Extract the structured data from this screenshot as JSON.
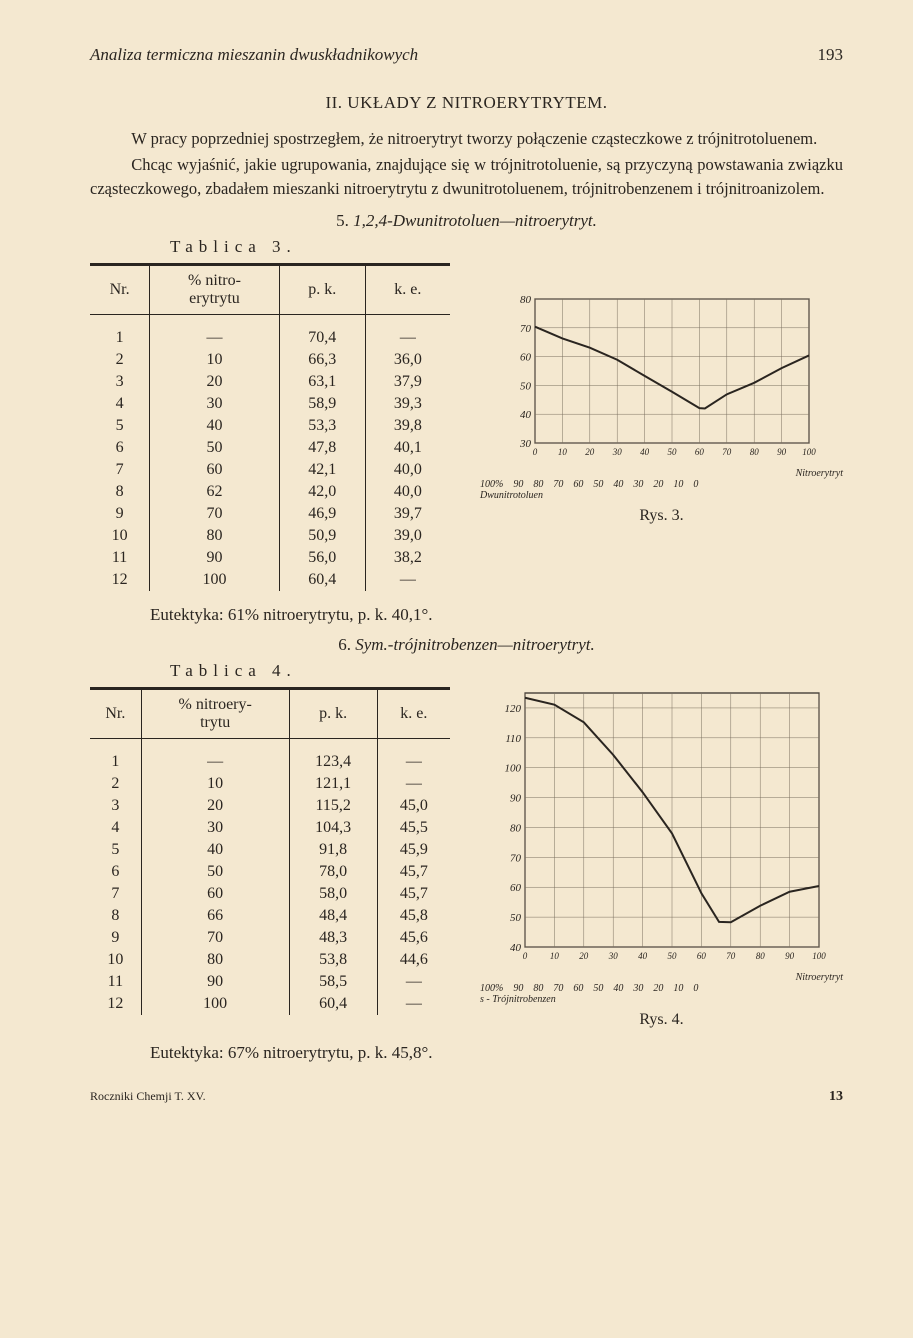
{
  "header": {
    "running_title": "Analiza termiczna mieszanin dwuskładnikowych",
    "page_number": "193"
  },
  "section": {
    "title": "II.  UKŁADY Z NITROERYTRYTEM."
  },
  "paragraphs": {
    "p1": "W pracy poprzedniej spostrzegłem, że nitroerytryt tworzy połączenie cząsteczkowe z trójnitrotoluenem.",
    "p2": "Chcąc wyjaśnić, jakie ugrupowania, znajdujące się w trójnitrotoluenie, są przyczyną powstawania związku cząsteczkowego, zbadałem mieszanki nitroerytrytu z dwunitrotoluenem, trójnitrobenzenem i trójnitroanizolem."
  },
  "sub5": {
    "num": "5.",
    "title": "1,2,4-Dwunitrotoluen—nitroerytryt."
  },
  "table3": {
    "label": "Tablica 3.",
    "headers": {
      "c1": "Nr.",
      "c2": "% nitro-\nerytrytu",
      "c3": "p. k.",
      "c4": "k. e."
    },
    "rows": [
      {
        "nr": "1",
        "pct": "—",
        "pk": "70,4",
        "ke": "—"
      },
      {
        "nr": "2",
        "pct": "10",
        "pk": "66,3",
        "ke": "36,0"
      },
      {
        "nr": "3",
        "pct": "20",
        "pk": "63,1",
        "ke": "37,9"
      },
      {
        "nr": "4",
        "pct": "30",
        "pk": "58,9",
        "ke": "39,3"
      },
      {
        "nr": "5",
        "pct": "40",
        "pk": "53,3",
        "ke": "39,8"
      },
      {
        "nr": "6",
        "pct": "50",
        "pk": "47,8",
        "ke": "40,1"
      },
      {
        "nr": "7",
        "pct": "60",
        "pk": "42,1",
        "ke": "40,0"
      },
      {
        "nr": "8",
        "pct": "62",
        "pk": "42,0",
        "ke": "40,0"
      },
      {
        "nr": "9",
        "pct": "70",
        "pk": "46,9",
        "ke": "39,7"
      },
      {
        "nr": "10",
        "pct": "80",
        "pk": "50,9",
        "ke": "39,0"
      },
      {
        "nr": "11",
        "pct": "90",
        "pk": "56,0",
        "ke": "38,2"
      },
      {
        "nr": "12",
        "pct": "100",
        "pk": "60,4",
        "ke": "—"
      }
    ]
  },
  "chart3": {
    "type": "line",
    "caption": "Rys. 3.",
    "x_bottom_label_1": "Nitroerytryt",
    "x_bottom_label_2": "Dwunitrotoluen",
    "x_ticks": [
      0,
      10,
      20,
      30,
      40,
      50,
      60,
      70,
      80,
      90,
      100
    ],
    "x_ticks_rev": [
      "100%",
      90,
      80,
      70,
      60,
      50,
      40,
      30,
      20,
      10,
      0
    ],
    "y_ticks": [
      30,
      40,
      50,
      60,
      70,
      80
    ],
    "ylim": [
      30,
      80
    ],
    "xlim": [
      0,
      100
    ],
    "grid_color": "#7a6f5f",
    "line_color": "#2a2520",
    "line_width": 2,
    "background_color": "#f4e8d0",
    "series": [
      {
        "x": 0,
        "y": 70.4
      },
      {
        "x": 10,
        "y": 66.3
      },
      {
        "x": 20,
        "y": 63.1
      },
      {
        "x": 30,
        "y": 58.9
      },
      {
        "x": 40,
        "y": 53.3
      },
      {
        "x": 50,
        "y": 47.8
      },
      {
        "x": 60,
        "y": 42.1
      },
      {
        "x": 62,
        "y": 42.0
      },
      {
        "x": 70,
        "y": 46.9
      },
      {
        "x": 80,
        "y": 50.9
      },
      {
        "x": 90,
        "y": 56.0
      },
      {
        "x": 100,
        "y": 60.4
      }
    ]
  },
  "eut3": "Eutektyka: 61% nitroerytrytu, p. k. 40,1°.",
  "sub6": {
    "num": "6.",
    "title": "Sym.-trójnitrobenzen—nitroerytryt."
  },
  "table4": {
    "label": "Tablica 4.",
    "headers": {
      "c1": "Nr.",
      "c2": "% nitroery-\ntrytu",
      "c3": "p. k.",
      "c4": "k. e."
    },
    "rows": [
      {
        "nr": "1",
        "pct": "—",
        "pk": "123,4",
        "ke": "—"
      },
      {
        "nr": "2",
        "pct": "10",
        "pk": "121,1",
        "ke": "—"
      },
      {
        "nr": "3",
        "pct": "20",
        "pk": "115,2",
        "ke": "45,0"
      },
      {
        "nr": "4",
        "pct": "30",
        "pk": "104,3",
        "ke": "45,5"
      },
      {
        "nr": "5",
        "pct": "40",
        "pk": "91,8",
        "ke": "45,9"
      },
      {
        "nr": "6",
        "pct": "50",
        "pk": "78,0",
        "ke": "45,7"
      },
      {
        "nr": "7",
        "pct": "60",
        "pk": "58,0",
        "ke": "45,7"
      },
      {
        "nr": "8",
        "pct": "66",
        "pk": "48,4",
        "ke": "45,8"
      },
      {
        "nr": "9",
        "pct": "70",
        "pk": "48,3",
        "ke": "45,6"
      },
      {
        "nr": "10",
        "pct": "80",
        "pk": "53,8",
        "ke": "44,6"
      },
      {
        "nr": "11",
        "pct": "90",
        "pk": "58,5",
        "ke": "—"
      },
      {
        "nr": "12",
        "pct": "100",
        "pk": "60,4",
        "ke": "—"
      }
    ]
  },
  "chart4": {
    "type": "line",
    "caption": "Rys. 4.",
    "x_bottom_label_1": "Nitroerytryt",
    "x_bottom_label_2": "s - Trójnitrobenzen",
    "x_ticks": [
      0,
      10,
      20,
      30,
      40,
      50,
      60,
      70,
      80,
      90,
      100
    ],
    "x_ticks_rev": [
      "100%",
      90,
      80,
      70,
      60,
      50,
      40,
      30,
      20,
      10,
      0
    ],
    "y_ticks": [
      40,
      50,
      60,
      70,
      80,
      90,
      100,
      110,
      120
    ],
    "ylim": [
      40,
      125
    ],
    "xlim": [
      0,
      100
    ],
    "grid_color": "#7a6f5f",
    "line_color": "#2a2520",
    "line_width": 2,
    "background_color": "#f4e8d0",
    "series": [
      {
        "x": 0,
        "y": 123.4
      },
      {
        "x": 10,
        "y": 121.1
      },
      {
        "x": 20,
        "y": 115.2
      },
      {
        "x": 30,
        "y": 104.3
      },
      {
        "x": 40,
        "y": 91.8
      },
      {
        "x": 50,
        "y": 78.0
      },
      {
        "x": 60,
        "y": 58.0
      },
      {
        "x": 66,
        "y": 48.4
      },
      {
        "x": 70,
        "y": 48.3
      },
      {
        "x": 80,
        "y": 53.8
      },
      {
        "x": 90,
        "y": 58.5
      },
      {
        "x": 100,
        "y": 60.4
      }
    ]
  },
  "eut4": "Eutektyka: 67% nitroerytrytu, p. k. 45,8°.",
  "footer": {
    "journal": "Roczniki Chemji T. XV.",
    "sig": "13"
  }
}
